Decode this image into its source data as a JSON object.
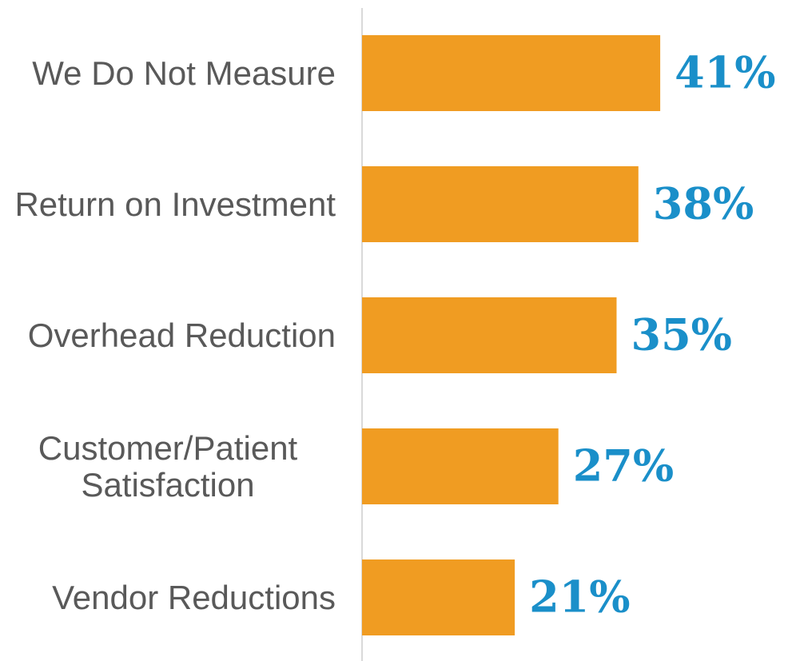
{
  "chart_data": {
    "type": "bar",
    "orientation": "horizontal",
    "categories": [
      "We Do Not Measure",
      "Return on Investment",
      "Overhead Reduction",
      "Customer/Patient Satisfaction",
      "Vendor Reductions"
    ],
    "values": [
      41,
      38,
      35,
      27,
      21
    ],
    "value_labels": [
      "41%",
      "38%",
      "35%",
      "27%",
      "21%"
    ],
    "color": "#f09c22",
    "label_color": "#1a8fc9"
  }
}
